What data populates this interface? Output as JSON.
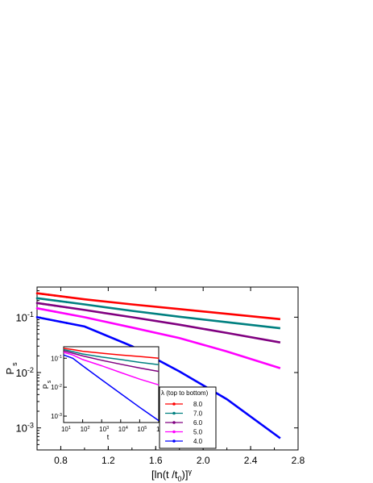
{
  "chart_data": [
    {
      "type": "line",
      "role": "main",
      "xlabel": "[ln(t /t0)]γ",
      "ylabel": "Ps",
      "xlim": [
        0.6,
        2.8
      ],
      "ylim": [
        0.0004,
        0.35
      ],
      "yscale": "log",
      "xticks": [
        "0.8",
        "1.2",
        "1.6",
        "2.0",
        "2.4",
        "2.8"
      ],
      "yticks": [
        {
          "base": "10",
          "exp": "-1"
        },
        {
          "base": "10",
          "exp": "-2"
        },
        {
          "base": "10",
          "exp": "-3"
        }
      ],
      "grid": false,
      "legend": {
        "placement": "inside-lower-middle",
        "title": "λ (top to bottom)"
      },
      "series": [
        {
          "name": "8.0",
          "color": "#ff0000",
          "x": [
            0.6,
            1.0,
            1.4,
            1.8,
            2.2,
            2.65
          ],
          "y": [
            0.27,
            0.21,
            0.17,
            0.14,
            0.115,
            0.092
          ]
        },
        {
          "name": "7.0",
          "color": "#008080",
          "x": [
            0.6,
            1.0,
            1.4,
            1.8,
            2.2,
            2.65
          ],
          "y": [
            0.22,
            0.17,
            0.13,
            0.102,
            0.081,
            0.063
          ]
        },
        {
          "name": "6.0",
          "color": "#800080",
          "x": [
            0.6,
            1.0,
            1.4,
            1.8,
            2.2,
            2.65
          ],
          "y": [
            0.18,
            0.135,
            0.1,
            0.073,
            0.052,
            0.035
          ]
        },
        {
          "name": "5.0",
          "color": "#ff00ff",
          "x": [
            0.6,
            1.0,
            1.4,
            1.8,
            2.2,
            2.65
          ],
          "y": [
            0.145,
            0.1,
            0.065,
            0.042,
            0.024,
            0.012
          ]
        },
        {
          "name": "4.0",
          "color": "#0000ff",
          "x": [
            0.6,
            1.0,
            1.4,
            1.8,
            2.2,
            2.65
          ],
          "y": [
            0.1,
            0.068,
            0.03,
            0.0105,
            0.0033,
            0.00065
          ]
        }
      ]
    },
    {
      "type": "line",
      "role": "inset",
      "xlabel": "t",
      "ylabel": "Ps",
      "xscale": "log",
      "yscale": "log",
      "xlim": [
        10,
        1000000
      ],
      "ylim": [
        0.0006,
        0.25
      ],
      "xticks": [
        {
          "base": "10",
          "exp": "1"
        },
        {
          "base": "10",
          "exp": "2"
        },
        {
          "base": "10",
          "exp": "3"
        },
        {
          "base": "10",
          "exp": "4"
        },
        {
          "base": "10",
          "exp": "5"
        },
        {
          "base": "10",
          "exp": "6"
        }
      ],
      "yticks": [
        {
          "base": "10",
          "exp": "-1"
        },
        {
          "base": "10",
          "exp": "-2"
        },
        {
          "base": "10",
          "exp": "-3"
        }
      ],
      "series": [
        {
          "name": "8.0",
          "color": "#ff0000",
          "x": [
            10,
            30,
            100,
            1000,
            10000,
            100000,
            1000000
          ],
          "y": [
            0.22,
            0.2,
            0.175,
            0.15,
            0.13,
            0.115,
            0.1
          ]
        },
        {
          "name": "7.0",
          "color": "#008080",
          "x": [
            10,
            30,
            100,
            1000,
            10000,
            100000,
            1000000
          ],
          "y": [
            0.2,
            0.17,
            0.14,
            0.11,
            0.09,
            0.072,
            0.06
          ]
        },
        {
          "name": "6.0",
          "color": "#800080",
          "x": [
            10,
            30,
            100,
            1000,
            10000,
            100000,
            1000000
          ],
          "y": [
            0.18,
            0.15,
            0.12,
            0.085,
            0.062,
            0.046,
            0.035
          ]
        },
        {
          "name": "5.0",
          "color": "#ff00ff",
          "x": [
            10,
            30,
            100,
            1000,
            10000,
            100000,
            1000000
          ],
          "y": [
            0.16,
            0.13,
            0.09,
            0.055,
            0.032,
            0.019,
            0.012
          ]
        },
        {
          "name": "4.0",
          "color": "#0000ff",
          "x": [
            10,
            30,
            100,
            1000,
            10000,
            100000,
            1000000
          ],
          "y": [
            0.13,
            0.1,
            0.055,
            0.018,
            0.006,
            0.002,
            0.0007
          ]
        }
      ]
    }
  ]
}
